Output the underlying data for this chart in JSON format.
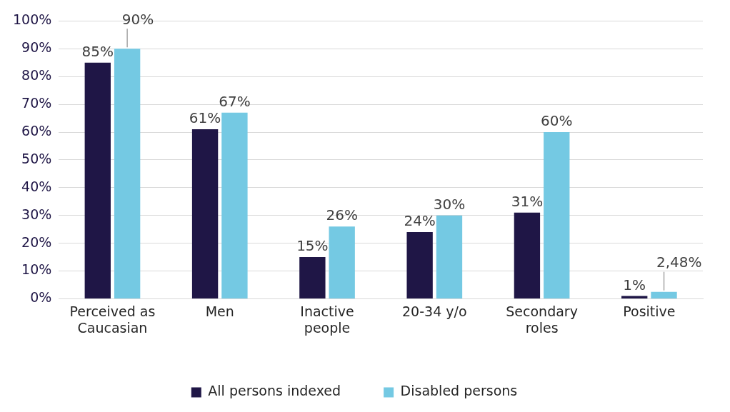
{
  "chart_data": {
    "type": "bar",
    "categories": [
      "Perceived as Caucasian",
      "Men",
      "Inactive people",
      "20-34 y/o",
      "Secondary roles",
      "Positive"
    ],
    "series": [
      {
        "name": "All persons indexed",
        "color": "#1f1646",
        "values": [
          85,
          61,
          15,
          24,
          31,
          1
        ],
        "value_labels": [
          "85%",
          "61%",
          "15%",
          "24%",
          "31%",
          "1%"
        ]
      },
      {
        "name": "Disabled persons",
        "color": "#74c9e3",
        "values": [
          90,
          67,
          26,
          30,
          60,
          2.48
        ],
        "value_labels": [
          "90%",
          "67%",
          "26%",
          "30%",
          "60%",
          "2,48%"
        ]
      }
    ],
    "ylim": [
      0,
      100
    ],
    "yticks": [
      {
        "value": 0,
        "label": "0%"
      },
      {
        "value": 10,
        "label": "10%"
      },
      {
        "value": 20,
        "label": "20%"
      },
      {
        "value": 30,
        "label": "30%"
      },
      {
        "value": 40,
        "label": "40%"
      },
      {
        "value": 50,
        "label": "50%"
      },
      {
        "value": 60,
        "label": "60%"
      },
      {
        "value": 70,
        "label": "70%"
      },
      {
        "value": 80,
        "label": "80%"
      },
      {
        "value": 90,
        "label": "90%"
      },
      {
        "value": 100,
        "label": "100%"
      }
    ],
    "grid": "y",
    "legend": "bottom"
  }
}
